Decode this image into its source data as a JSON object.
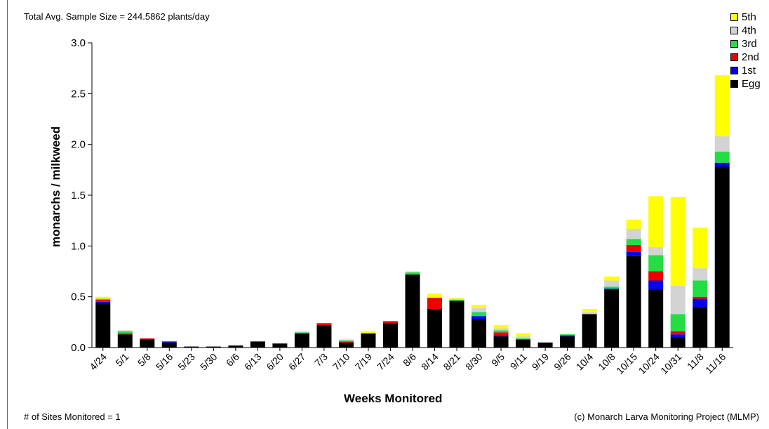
{
  "header": {
    "total_avg_sample": "Total Avg. Sample Size = 244.5862 plants/day"
  },
  "footer": {
    "sites_monitored": "# of Sites Monitored = 1",
    "credit": "(c) Monarch Larva Monitoring Project (MLMP)"
  },
  "legend": {
    "items": [
      {
        "label": "5th",
        "color": "#ffff00"
      },
      {
        "label": "4th",
        "color": "#d3d3d3"
      },
      {
        "label": "3rd",
        "color": "#22dd44"
      },
      {
        "label": "2nd",
        "color": "#ee0000"
      },
      {
        "label": "1st",
        "color": "#0000ee"
      },
      {
        "label": "Egg",
        "color": "#000000"
      }
    ]
  },
  "chart_data": {
    "type": "bar",
    "stacked": true,
    "xlabel": "Weeks Monitored",
    "ylabel": "monarchs / milkweed",
    "ylim": [
      0,
      3.0
    ],
    "yticks": [
      "0.0",
      "0.5",
      "1.0",
      "1.5",
      "2.0",
      "2.5",
      "3.0"
    ],
    "categories": [
      "4/24",
      "5/1",
      "5/8",
      "5/16",
      "5/23",
      "5/30",
      "6/6",
      "6/13",
      "6/20",
      "6/27",
      "7/3",
      "7/10",
      "7/19",
      "7/24",
      "8/6",
      "8/14",
      "8/21",
      "8/30",
      "9/5",
      "9/11",
      "9/19",
      "9/26",
      "10/4",
      "10/8",
      "10/15",
      "10/24",
      "10/31",
      "11/8",
      "11/16"
    ],
    "series": [
      {
        "name": "Egg",
        "color": "#000000",
        "values": [
          0.44,
          0.13,
          0.08,
          0.05,
          0.01,
          0.01,
          0.02,
          0.06,
          0.04,
          0.14,
          0.22,
          0.05,
          0.14,
          0.24,
          0.72,
          0.38,
          0.46,
          0.28,
          0.11,
          0.08,
          0.05,
          0.11,
          0.33,
          0.57,
          0.9,
          0.57,
          0.1,
          0.4,
          1.78
        ]
      },
      {
        "name": "1st",
        "color": "#0000ee",
        "values": [
          0.01,
          0,
          0,
          0.01,
          0,
          0,
          0,
          0,
          0,
          0,
          0,
          0,
          0,
          0,
          0,
          0,
          0,
          0.03,
          0.01,
          0,
          0,
          0.01,
          0,
          0.01,
          0.04,
          0.09,
          0.03,
          0.08,
          0.04
        ]
      },
      {
        "name": "2nd",
        "color": "#ee0000",
        "values": [
          0.02,
          0.01,
          0.01,
          0,
          0,
          0,
          0,
          0,
          0,
          0,
          0.02,
          0.01,
          0,
          0.02,
          0,
          0.11,
          0,
          0,
          0.03,
          0,
          0,
          0,
          0,
          0,
          0.07,
          0.09,
          0.03,
          0.02,
          0
        ]
      },
      {
        "name": "3rd",
        "color": "#22dd44",
        "values": [
          0.01,
          0.02,
          0,
          0,
          0,
          0,
          0,
          0,
          0,
          0.01,
          0,
          0.01,
          0,
          0,
          0.02,
          0,
          0.01,
          0.04,
          0.02,
          0.01,
          0,
          0.01,
          0,
          0.02,
          0.06,
          0.16,
          0.17,
          0.16,
          0.11
        ]
      },
      {
        "name": "4th",
        "color": "#d3d3d3",
        "values": [
          0,
          0.01,
          0,
          0,
          0,
          0,
          0,
          0,
          0,
          0.01,
          0,
          0.01,
          0,
          0,
          0.01,
          0,
          0.01,
          0.04,
          0.02,
          0.02,
          0,
          0,
          0.02,
          0.06,
          0.1,
          0.08,
          0.28,
          0.12,
          0.15
        ]
      },
      {
        "name": "5th",
        "color": "#ffff00",
        "values": [
          0.02,
          0,
          0,
          0,
          0,
          0,
          0,
          0,
          0,
          0,
          0,
          0,
          0.02,
          0,
          0,
          0.04,
          0.01,
          0.03,
          0.03,
          0.03,
          0,
          0,
          0.03,
          0.04,
          0.09,
          0.5,
          0.87,
          0.4,
          0.6
        ]
      }
    ]
  }
}
